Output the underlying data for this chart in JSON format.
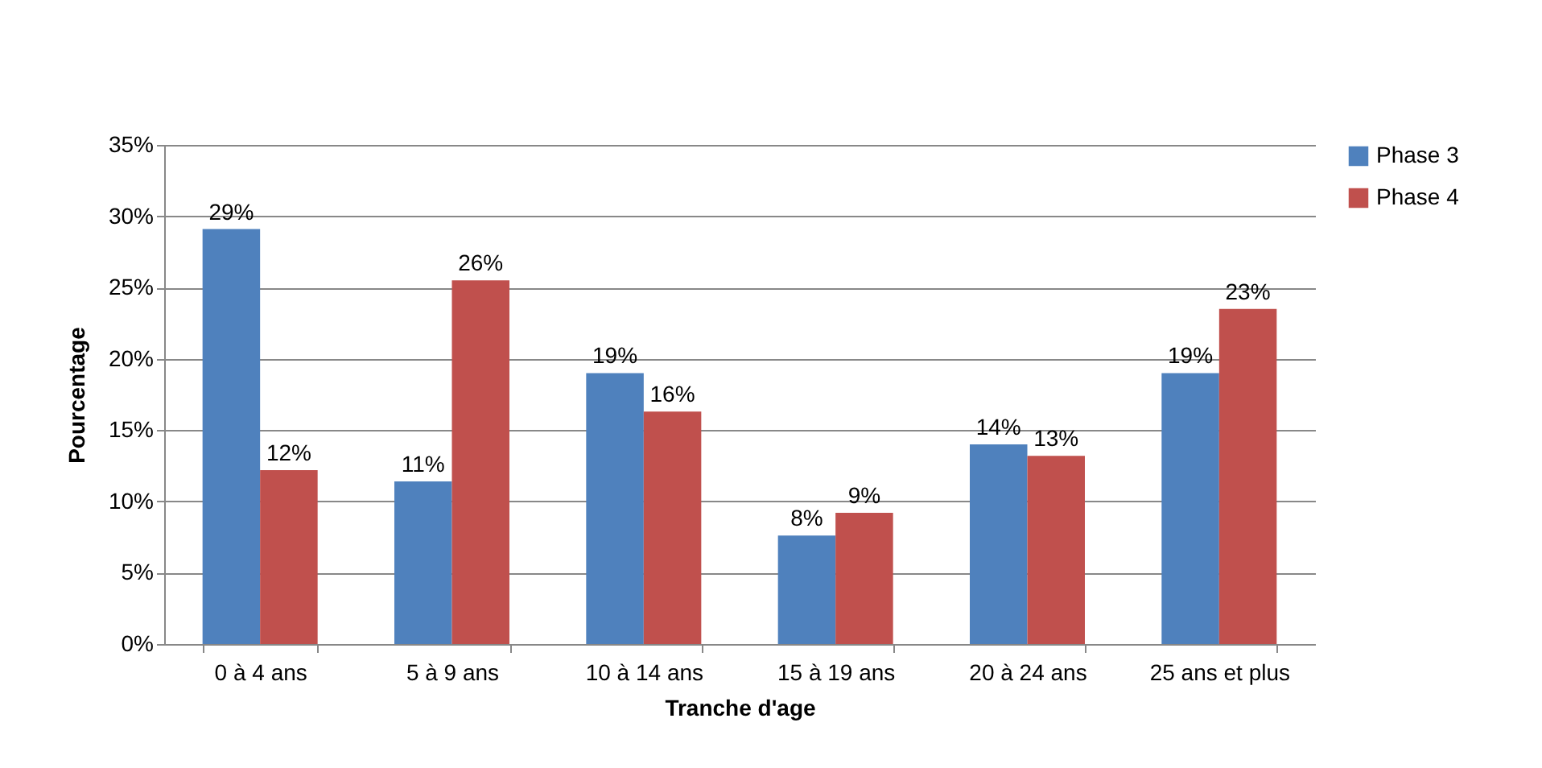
{
  "chart_data": {
    "type": "bar",
    "xlabel": "Tranche d'age",
    "ylabel": "Pourcentage",
    "categories": [
      "0 à 4 ans",
      "5 à 9 ans",
      "10 à 14 ans",
      "15 à 19 ans",
      "20 à 24 ans",
      "25 ans et plus"
    ],
    "series": [
      {
        "name": "Phase 3",
        "color": "#4f81bd",
        "values": [
          29.1,
          11.4,
          19,
          7.6,
          14,
          19
        ],
        "value_labels": [
          "29%",
          "11%",
          "19%",
          "8%",
          "14%",
          "19%"
        ]
      },
      {
        "name": "Phase 4",
        "color": "#c0504d",
        "values": [
          12.2,
          25.5,
          16.3,
          9.2,
          13.2,
          23.5
        ],
        "value_labels": [
          "12%",
          "26%",
          "16%",
          "9%",
          "13%",
          "23%"
        ]
      }
    ],
    "ylim": [
      0,
      35
    ],
    "yticks": [
      {
        "value": 0,
        "label": "0%"
      },
      {
        "value": 5,
        "label": "5%"
      },
      {
        "value": 10,
        "label": "10%"
      },
      {
        "value": 15,
        "label": "15%"
      },
      {
        "value": 20,
        "label": "20%"
      },
      {
        "value": 25,
        "label": "25%"
      },
      {
        "value": 30,
        "label": "30%"
      },
      {
        "value": 35,
        "label": "35%"
      }
    ],
    "grid": "y",
    "legend": "right"
  }
}
